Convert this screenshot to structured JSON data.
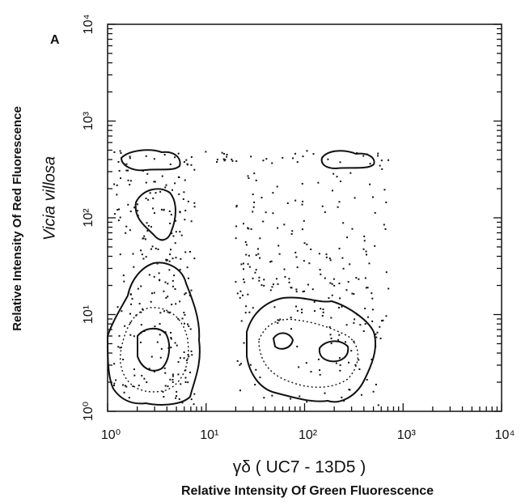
{
  "chart_data": {
    "type": "contour",
    "panel_label": "A",
    "ylabel": "Relative Intensity Of Red Fluorescence",
    "ylabel2": "Vicia villosa",
    "xlabel": "γδ ( UC7 - 13D5 )",
    "xlabel2": "Relative Intensity Of Green Fluorescence",
    "xscale": "log",
    "yscale": "log",
    "xlim": [
      1,
      10000
    ],
    "ylim": [
      1,
      10000
    ],
    "xticks": [
      {
        "value": 1,
        "label": "10⁰"
      },
      {
        "value": 10,
        "label": "10¹"
      },
      {
        "value": 100,
        "label": "10²"
      },
      {
        "value": 1000,
        "label": "10³"
      },
      {
        "value": 10000,
        "label": "10⁴"
      }
    ],
    "yticks": [
      {
        "value": 1,
        "label": "10⁰"
      },
      {
        "value": 10,
        "label": "10¹"
      },
      {
        "value": 100,
        "label": "10²"
      },
      {
        "value": 1000,
        "label": "10³"
      },
      {
        "value": 10000,
        "label": "10⁴"
      }
    ]
  }
}
